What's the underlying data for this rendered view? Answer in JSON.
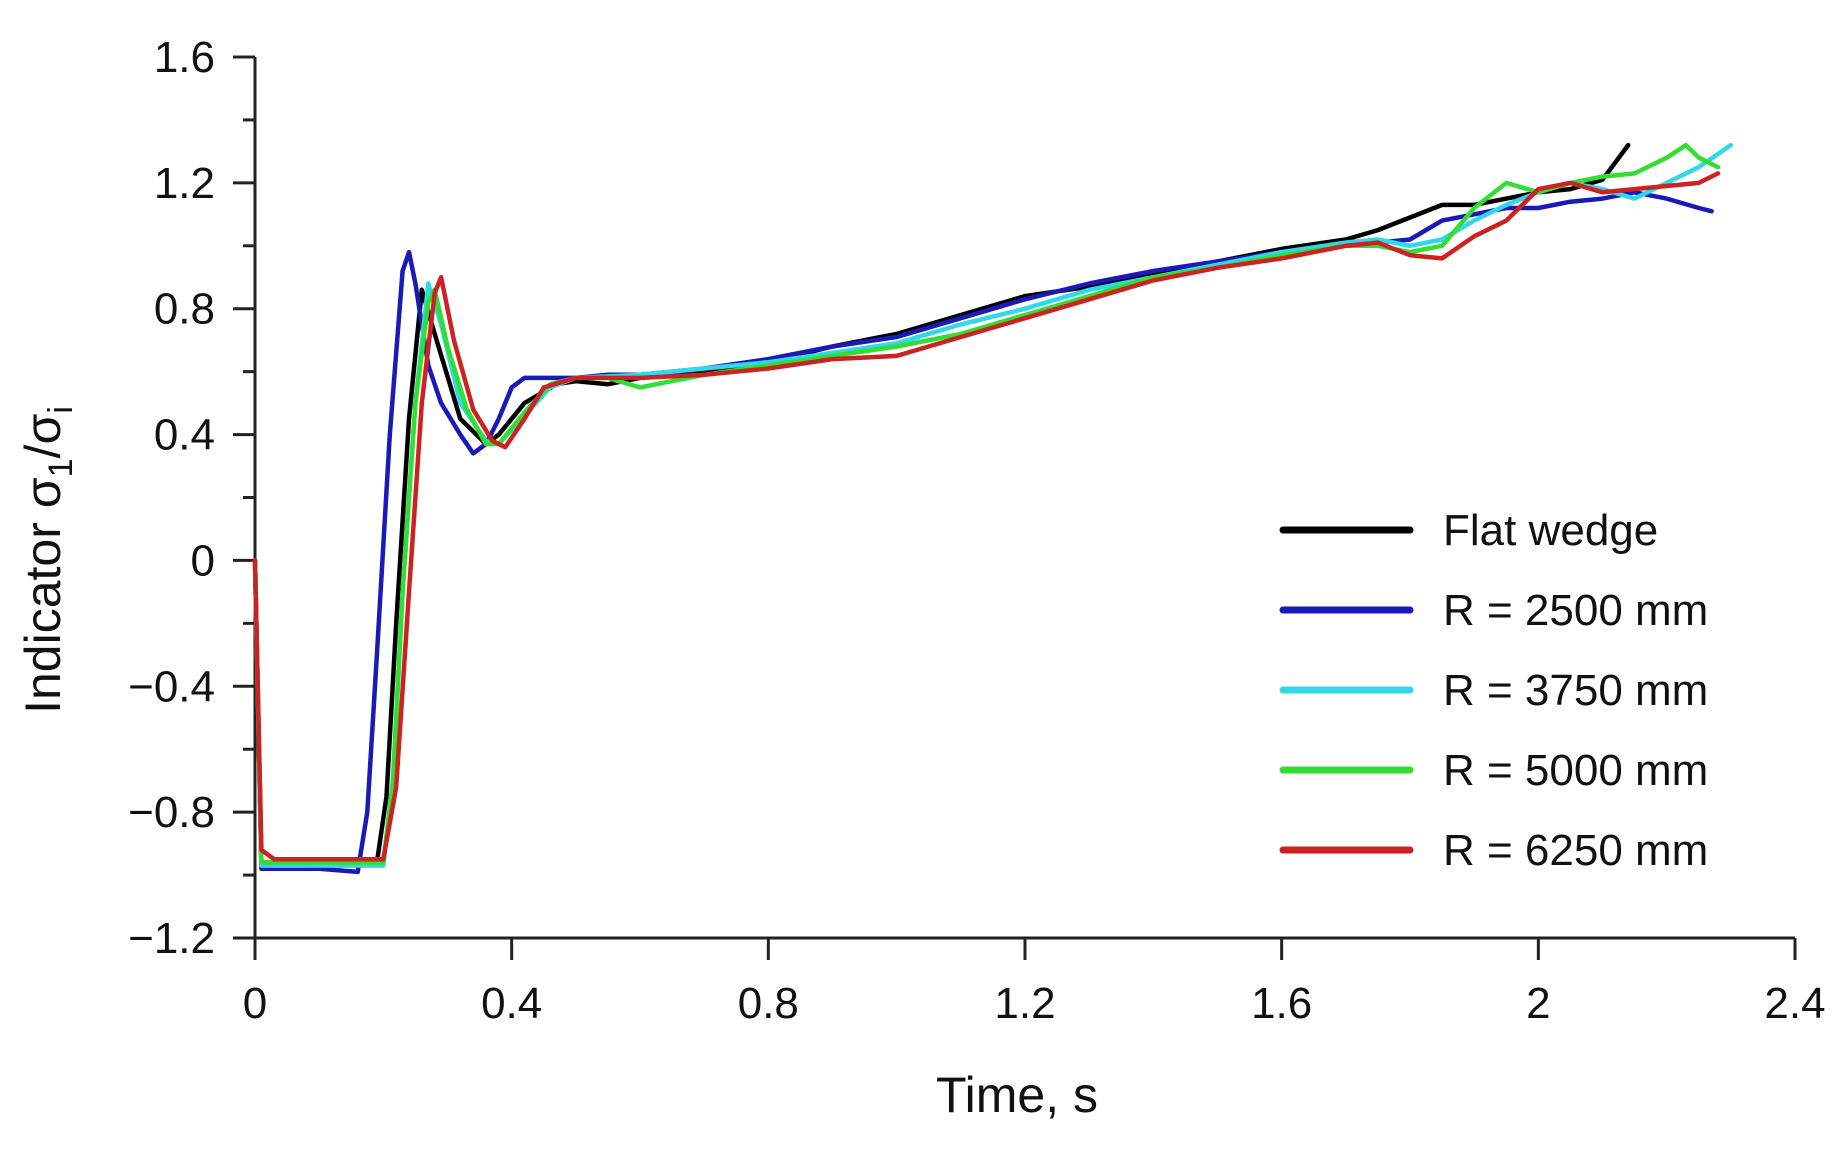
{
  "chart_data": {
    "type": "line",
    "xlabel": "Time, s",
    "ylabel": {
      "main": "Indicator σ",
      "sub1": "1",
      "slash": "/σ",
      "sub2": "i"
    },
    "xlim": [
      0,
      2.4
    ],
    "ylim": [
      -1.2,
      1.6
    ],
    "xticks": [
      0,
      0.4,
      0.8,
      1.2,
      1.6,
      2,
      2.4
    ],
    "xtick_labels": [
      "0",
      "0.4",
      "0.8",
      "1.2",
      "1.6",
      "2",
      "2.4"
    ],
    "yticks": [
      -1.2,
      -0.8,
      -0.4,
      0,
      0.4,
      0.8,
      1.2,
      1.6
    ],
    "ytick_labels": [
      "−1.2",
      "−0.8",
      "−0.4",
      "0",
      "0.4",
      "0.8",
      "1.2",
      "1.6"
    ],
    "yminor_step": 0.2,
    "grid": false,
    "legend_position": "lower-right",
    "series": [
      {
        "name": "Flat wedge",
        "color": "#000000",
        "x": [
          0,
          0.01,
          0.1,
          0.19,
          0.205,
          0.22,
          0.24,
          0.26,
          0.28,
          0.32,
          0.36,
          0.38,
          0.42,
          0.47,
          0.5,
          0.55,
          0.6,
          0.7,
          0.8,
          0.9,
          1.0,
          1.1,
          1.2,
          1.3,
          1.4,
          1.5,
          1.6,
          1.7,
          1.75,
          1.8,
          1.85,
          1.9,
          1.95,
          2.0,
          2.05,
          2.1,
          2.14
        ],
        "y": [
          0,
          -0.96,
          -0.96,
          -0.96,
          -0.75,
          -0.2,
          0.45,
          0.86,
          0.72,
          0.45,
          0.37,
          0.4,
          0.5,
          0.56,
          0.57,
          0.56,
          0.58,
          0.6,
          0.63,
          0.68,
          0.72,
          0.78,
          0.84,
          0.87,
          0.91,
          0.95,
          0.99,
          1.02,
          1.05,
          1.09,
          1.13,
          1.13,
          1.15,
          1.17,
          1.18,
          1.21,
          1.32
        ]
      },
      {
        "name": "R = 2500 mm",
        "color": "#1a1ab8",
        "x": [
          0,
          0.01,
          0.1,
          0.16,
          0.175,
          0.19,
          0.21,
          0.23,
          0.24,
          0.25,
          0.27,
          0.29,
          0.32,
          0.34,
          0.36,
          0.38,
          0.4,
          0.42,
          0.45,
          0.5,
          0.55,
          0.6,
          0.7,
          0.8,
          0.9,
          1.0,
          1.1,
          1.2,
          1.3,
          1.4,
          1.5,
          1.6,
          1.7,
          1.8,
          1.85,
          1.9,
          1.95,
          2.0,
          2.05,
          2.1,
          2.15,
          2.2,
          2.25,
          2.27
        ],
        "y": [
          0,
          -0.98,
          -0.98,
          -0.99,
          -0.8,
          -0.3,
          0.4,
          0.92,
          0.98,
          0.88,
          0.62,
          0.5,
          0.4,
          0.34,
          0.37,
          0.45,
          0.55,
          0.58,
          0.58,
          0.58,
          0.59,
          0.59,
          0.61,
          0.64,
          0.68,
          0.71,
          0.77,
          0.83,
          0.88,
          0.92,
          0.95,
          0.98,
          1.0,
          1.02,
          1.08,
          1.1,
          1.12,
          1.12,
          1.14,
          1.15,
          1.17,
          1.15,
          1.12,
          1.11
        ]
      },
      {
        "name": "R = 3750 mm",
        "color": "#33d8e8",
        "x": [
          0,
          0.01,
          0.1,
          0.2,
          0.215,
          0.23,
          0.25,
          0.27,
          0.29,
          0.32,
          0.36,
          0.38,
          0.42,
          0.46,
          0.5,
          0.6,
          0.7,
          0.8,
          0.9,
          1.0,
          1.1,
          1.2,
          1.3,
          1.4,
          1.5,
          1.6,
          1.7,
          1.75,
          1.8,
          1.85,
          1.9,
          1.95,
          2.0,
          2.05,
          2.1,
          2.15,
          2.2,
          2.25,
          2.3
        ],
        "y": [
          0,
          -0.97,
          -0.97,
          -0.97,
          -0.7,
          -0.1,
          0.5,
          0.88,
          0.75,
          0.5,
          0.38,
          0.37,
          0.46,
          0.55,
          0.58,
          0.59,
          0.61,
          0.63,
          0.66,
          0.69,
          0.75,
          0.8,
          0.86,
          0.9,
          0.94,
          0.98,
          1.01,
          1.02,
          1.0,
          1.02,
          1.08,
          1.13,
          1.17,
          1.2,
          1.18,
          1.15,
          1.2,
          1.25,
          1.32
        ]
      },
      {
        "name": "R = 5000 mm",
        "color": "#33dd33",
        "x": [
          0,
          0.01,
          0.1,
          0.2,
          0.215,
          0.23,
          0.25,
          0.27,
          0.28,
          0.3,
          0.33,
          0.36,
          0.38,
          0.42,
          0.46,
          0.5,
          0.55,
          0.6,
          0.65,
          0.7,
          0.8,
          0.9,
          1.0,
          1.1,
          1.2,
          1.3,
          1.4,
          1.5,
          1.6,
          1.7,
          1.75,
          1.8,
          1.85,
          1.9,
          1.95,
          2.0,
          2.05,
          2.1,
          2.15,
          2.2,
          2.23,
          2.25,
          2.28
        ],
        "y": [
          0,
          -0.96,
          -0.96,
          -0.96,
          -0.7,
          -0.1,
          0.5,
          0.82,
          0.86,
          0.68,
          0.48,
          0.37,
          0.37,
          0.47,
          0.56,
          0.58,
          0.58,
          0.55,
          0.57,
          0.59,
          0.62,
          0.65,
          0.68,
          0.72,
          0.78,
          0.84,
          0.9,
          0.93,
          0.97,
          1.0,
          1.0,
          0.98,
          1.0,
          1.12,
          1.2,
          1.17,
          1.2,
          1.22,
          1.23,
          1.28,
          1.32,
          1.28,
          1.25
        ]
      },
      {
        "name": "R = 6250 mm",
        "color": "#cc2222",
        "x": [
          0,
          0.01,
          0.03,
          0.1,
          0.2,
          0.22,
          0.24,
          0.26,
          0.28,
          0.29,
          0.31,
          0.34,
          0.37,
          0.39,
          0.42,
          0.45,
          0.5,
          0.6,
          0.7,
          0.8,
          0.9,
          1.0,
          1.1,
          1.2,
          1.3,
          1.4,
          1.5,
          1.6,
          1.7,
          1.75,
          1.8,
          1.85,
          1.9,
          1.95,
          2.0,
          2.05,
          2.1,
          2.15,
          2.2,
          2.25,
          2.28
        ],
        "y": [
          0,
          -0.92,
          -0.95,
          -0.95,
          -0.95,
          -0.72,
          -0.1,
          0.5,
          0.85,
          0.9,
          0.7,
          0.48,
          0.38,
          0.36,
          0.45,
          0.55,
          0.58,
          0.58,
          0.59,
          0.61,
          0.64,
          0.65,
          0.71,
          0.77,
          0.83,
          0.89,
          0.93,
          0.96,
          1.0,
          1.01,
          0.97,
          0.96,
          1.03,
          1.08,
          1.18,
          1.2,
          1.17,
          1.18,
          1.19,
          1.2,
          1.23
        ]
      }
    ]
  }
}
